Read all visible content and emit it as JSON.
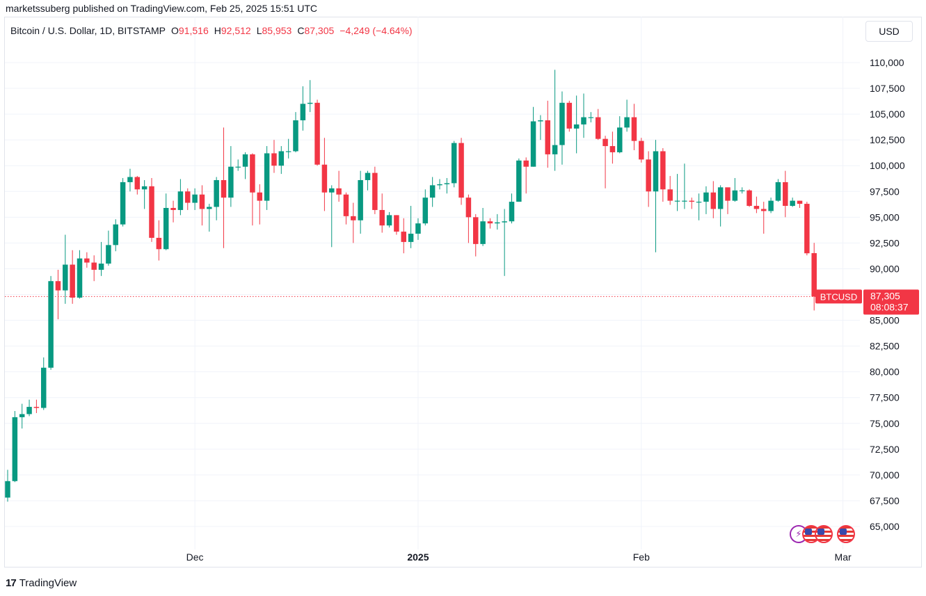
{
  "published": "marketssuberg published on TradingView.com, Feb 25, 2025 15:51 UTC",
  "legend": {
    "symbol": "Bitcoin / U.S. Dollar, 1D, BITSTAMP",
    "open_label": "O",
    "open": "91,516",
    "high_label": "H",
    "high": "92,512",
    "low_label": "L",
    "low": "85,953",
    "close_label": "C",
    "close": "87,305",
    "change": "−4,249 (−4.64%)"
  },
  "currency_button": "USD",
  "price_tag": {
    "ticker": "BTCUSD",
    "price": "87,305",
    "countdown": "08:08:37",
    "value": 87305
  },
  "footer": {
    "brand": "TradingView",
    "logo_mark": "17"
  },
  "badges": [
    "bolt-icon",
    "us-flag-icon",
    "us-flag-icon",
    "us-flag-icon"
  ],
  "colors": {
    "up": "#089981",
    "down": "#f23645",
    "grid": "#f0f3fa",
    "text": "#131722"
  },
  "chart_data": {
    "type": "candlestick",
    "interval": "1D",
    "ylim": [
      63000,
      112000
    ],
    "yticks": [
      110000,
      107500,
      105000,
      102500,
      100000,
      97500,
      95000,
      92500,
      90000,
      87500,
      85000,
      82500,
      80000,
      77500,
      75000,
      72500,
      70000,
      67500,
      65000
    ],
    "ytick_labels": [
      "110,000",
      "107,500",
      "105,000",
      "102,500",
      "100,000",
      "97,500",
      "95,000",
      "92,500",
      "90,000",
      "",
      "85,000",
      "82,500",
      "80,000",
      "77,500",
      "75,000",
      "72,500",
      "70,000",
      "67,500",
      "65,000"
    ],
    "xticks": [
      {
        "date": "2024-12-01",
        "label": "Dec",
        "bold": false
      },
      {
        "date": "2025-01-01",
        "label": "2025",
        "bold": true
      },
      {
        "date": "2025-02-01",
        "label": "Feb",
        "bold": false
      },
      {
        "date": "2025-03-01",
        "label": "Mar",
        "bold": false
      }
    ],
    "first_date": "2024-11-05",
    "last_price": 87305,
    "candles": [
      [
        "2024-11-05",
        67800,
        69400,
        67400,
        70500
      ],
      [
        "2024-11-06",
        69400,
        75600,
        69300,
        76200
      ],
      [
        "2024-11-07",
        75600,
        75900,
        74500,
        76900
      ],
      [
        "2024-11-08",
        75900,
        76600,
        75700,
        77300
      ],
      [
        "2024-11-09",
        76600,
        76500,
        76000,
        77300
      ],
      [
        "2024-11-10",
        76500,
        80400,
        76300,
        81400
      ],
      [
        "2024-11-11",
        80400,
        88800,
        80200,
        89300
      ],
      [
        "2024-11-12",
        88800,
        87900,
        85100,
        89900
      ],
      [
        "2024-11-13",
        87900,
        90400,
        86600,
        93300
      ],
      [
        "2024-11-14",
        90400,
        87200,
        86600,
        91800
      ],
      [
        "2024-11-15",
        87200,
        91000,
        87100,
        91800
      ],
      [
        "2024-11-16",
        91000,
        90600,
        90100,
        91600
      ],
      [
        "2024-11-17",
        90600,
        89900,
        88800,
        91300
      ],
      [
        "2024-11-18",
        89900,
        90500,
        89300,
        92600
      ],
      [
        "2024-11-19",
        90500,
        92300,
        90300,
        93700
      ],
      [
        "2024-11-20",
        92300,
        94300,
        91700,
        94800
      ],
      [
        "2024-11-21",
        94300,
        98400,
        94100,
        98800
      ],
      [
        "2024-11-22",
        98400,
        98900,
        97500,
        99700
      ],
      [
        "2024-11-23",
        98900,
        97700,
        97200,
        99000
      ],
      [
        "2024-11-24",
        97700,
        98000,
        95800,
        98600
      ],
      [
        "2024-11-25",
        98000,
        93000,
        92600,
        98800
      ],
      [
        "2024-11-26",
        93000,
        91900,
        90800,
        94700
      ],
      [
        "2024-11-27",
        91900,
        95900,
        91800,
        97300
      ],
      [
        "2024-11-28",
        95900,
        95700,
        94500,
        96600
      ],
      [
        "2024-11-29",
        95700,
        97500,
        95200,
        98700
      ],
      [
        "2024-11-30",
        97500,
        96400,
        95700,
        97800
      ],
      [
        "2024-12-01",
        96400,
        97200,
        95700,
        97800
      ],
      [
        "2024-12-02",
        97200,
        95800,
        94200,
        98100
      ],
      [
        "2024-12-03",
        95800,
        96000,
        93600,
        96300
      ],
      [
        "2024-12-04",
        96000,
        98600,
        94700,
        98900
      ],
      [
        "2024-12-05",
        98600,
        96900,
        92000,
        103700
      ],
      [
        "2024-12-06",
        96900,
        99900,
        96000,
        101900
      ],
      [
        "2024-12-07",
        99900,
        99900,
        99500,
        100600
      ],
      [
        "2024-12-08",
        99900,
        101100,
        98700,
        101300
      ],
      [
        "2024-12-09",
        101100,
        97400,
        94200,
        101200
      ],
      [
        "2024-12-10",
        97400,
        96600,
        94300,
        98200
      ],
      [
        "2024-12-11",
        96600,
        101200,
        95700,
        101900
      ],
      [
        "2024-12-12",
        101200,
        100000,
        99300,
        102500
      ],
      [
        "2024-12-13",
        100000,
        101400,
        99200,
        101900
      ],
      [
        "2024-12-14",
        101400,
        101400,
        100700,
        102600
      ],
      [
        "2024-12-15",
        101400,
        104400,
        101300,
        105200
      ],
      [
        "2024-12-16",
        104400,
        106000,
        103400,
        107700
      ],
      [
        "2024-12-17",
        106000,
        106100,
        105200,
        108300
      ],
      [
        "2024-12-18",
        106100,
        100100,
        100000,
        106400
      ],
      [
        "2024-12-19",
        100100,
        97400,
        95600,
        102700
      ],
      [
        "2024-12-20",
        97400,
        97800,
        92100,
        98100
      ],
      [
        "2024-12-21",
        97800,
        97200,
        96500,
        99500
      ],
      [
        "2024-12-22",
        97200,
        95100,
        94300,
        97400
      ],
      [
        "2024-12-23",
        95100,
        94700,
        92500,
        96400
      ],
      [
        "2024-12-24",
        94700,
        98600,
        93400,
        99500
      ],
      [
        "2024-12-25",
        98600,
        99300,
        97600,
        99500
      ],
      [
        "2024-12-26",
        99300,
        95700,
        95300,
        99900
      ],
      [
        "2024-12-27",
        95700,
        94200,
        93500,
        97300
      ],
      [
        "2024-12-28",
        94200,
        95200,
        94000,
        95500
      ],
      [
        "2024-12-29",
        95200,
        93600,
        93300,
        95200
      ],
      [
        "2024-12-30",
        93600,
        92600,
        91500,
        94900
      ],
      [
        "2024-12-31",
        92600,
        93400,
        92000,
        96100
      ],
      [
        "2025-01-01",
        93400,
        94400,
        92800,
        94900
      ],
      [
        "2025-01-02",
        94400,
        96900,
        94200,
        97700
      ],
      [
        "2025-01-03",
        96900,
        98100,
        96000,
        98900
      ],
      [
        "2025-01-04",
        98100,
        98200,
        97700,
        98700
      ],
      [
        "2025-01-05",
        98200,
        98300,
        97300,
        98800
      ],
      [
        "2025-01-06",
        98300,
        102200,
        97900,
        102400
      ],
      [
        "2025-01-07",
        102200,
        96900,
        96200,
        102700
      ],
      [
        "2025-01-08",
        96900,
        95000,
        92500,
        97200
      ],
      [
        "2025-01-09",
        95000,
        92400,
        91200,
        95300
      ],
      [
        "2025-01-10",
        92400,
        94600,
        92200,
        95900
      ],
      [
        "2025-01-11",
        94600,
        94400,
        93900,
        94900
      ],
      [
        "2025-01-12",
        94400,
        94500,
        93800,
        95300
      ],
      [
        "2025-01-13",
        94500,
        94600,
        89300,
        95800
      ],
      [
        "2025-01-14",
        94600,
        96500,
        94400,
        97300
      ],
      [
        "2025-01-15",
        96500,
        100500,
        96500,
        100700
      ],
      [
        "2025-01-16",
        100500,
        99900,
        97300,
        100800
      ],
      [
        "2025-01-17",
        99900,
        104300,
        99900,
        105700
      ],
      [
        "2025-01-18",
        104300,
        104400,
        102500,
        104900
      ],
      [
        "2025-01-19",
        104400,
        101100,
        99800,
        106300
      ],
      [
        "2025-01-20",
        101100,
        102000,
        99500,
        109300
      ],
      [
        "2025-01-21",
        102000,
        106100,
        100100,
        107200
      ],
      [
        "2025-01-22",
        106100,
        103600,
        103300,
        106300
      ],
      [
        "2025-01-23",
        103600,
        104000,
        101200,
        106800
      ],
      [
        "2025-01-24",
        104000,
        104700,
        102700,
        107000
      ],
      [
        "2025-01-25",
        104700,
        104700,
        104200,
        105200
      ],
      [
        "2025-01-26",
        104700,
        102600,
        102500,
        105500
      ],
      [
        "2025-01-27",
        102600,
        101900,
        97800,
        102900
      ],
      [
        "2025-01-28",
        101900,
        101300,
        100200,
        103300
      ],
      [
        "2025-01-29",
        101300,
        103700,
        101200,
        104800
      ],
      [
        "2025-01-30",
        103700,
        104700,
        103300,
        106400
      ],
      [
        "2025-01-31",
        104700,
        102400,
        101500,
        106000
      ],
      [
        "2025-02-01",
        102400,
        100600,
        100300,
        102700
      ],
      [
        "2025-02-02",
        100600,
        97500,
        96000,
        101400
      ],
      [
        "2025-02-03",
        97500,
        101400,
        91600,
        102500
      ],
      [
        "2025-02-04",
        101400,
        97700,
        96500,
        101700
      ],
      [
        "2025-02-05",
        97700,
        96600,
        96200,
        99000
      ],
      [
        "2025-02-06",
        96600,
        96600,
        95600,
        99200
      ],
      [
        "2025-02-07",
        96600,
        96600,
        95800,
        100200
      ],
      [
        "2025-02-08",
        96600,
        96500,
        95800,
        96900
      ],
      [
        "2025-02-09",
        96500,
        96500,
        94700,
        97300
      ],
      [
        "2025-02-10",
        96500,
        97400,
        95300,
        98000
      ],
      [
        "2025-02-11",
        97400,
        95800,
        94900,
        98500
      ],
      [
        "2025-02-12",
        95800,
        97900,
        94100,
        98100
      ],
      [
        "2025-02-13",
        97900,
        96600,
        95300,
        97800
      ],
      [
        "2025-02-14",
        96600,
        97600,
        96500,
        98800
      ],
      [
        "2025-02-15",
        97600,
        97600,
        97300,
        97900
      ],
      [
        "2025-02-16",
        97600,
        96100,
        96000,
        97700
      ],
      [
        "2025-02-17",
        96100,
        95800,
        95400,
        97000
      ],
      [
        "2025-02-18",
        95800,
        95600,
        93400,
        96500
      ],
      [
        "2025-02-19",
        95600,
        96600,
        95400,
        96900
      ],
      [
        "2025-02-20",
        96600,
        98400,
        96500,
        98700
      ],
      [
        "2025-02-21",
        98400,
        96100,
        95000,
        99500
      ],
      [
        "2025-02-22",
        96100,
        96600,
        96000,
        96900
      ],
      [
        "2025-02-23",
        96600,
        96300,
        95900,
        96600
      ],
      [
        "2025-02-24",
        96300,
        91500,
        91300,
        96500
      ],
      [
        "2025-02-25",
        91516,
        87305,
        85953,
        92512
      ]
    ]
  }
}
